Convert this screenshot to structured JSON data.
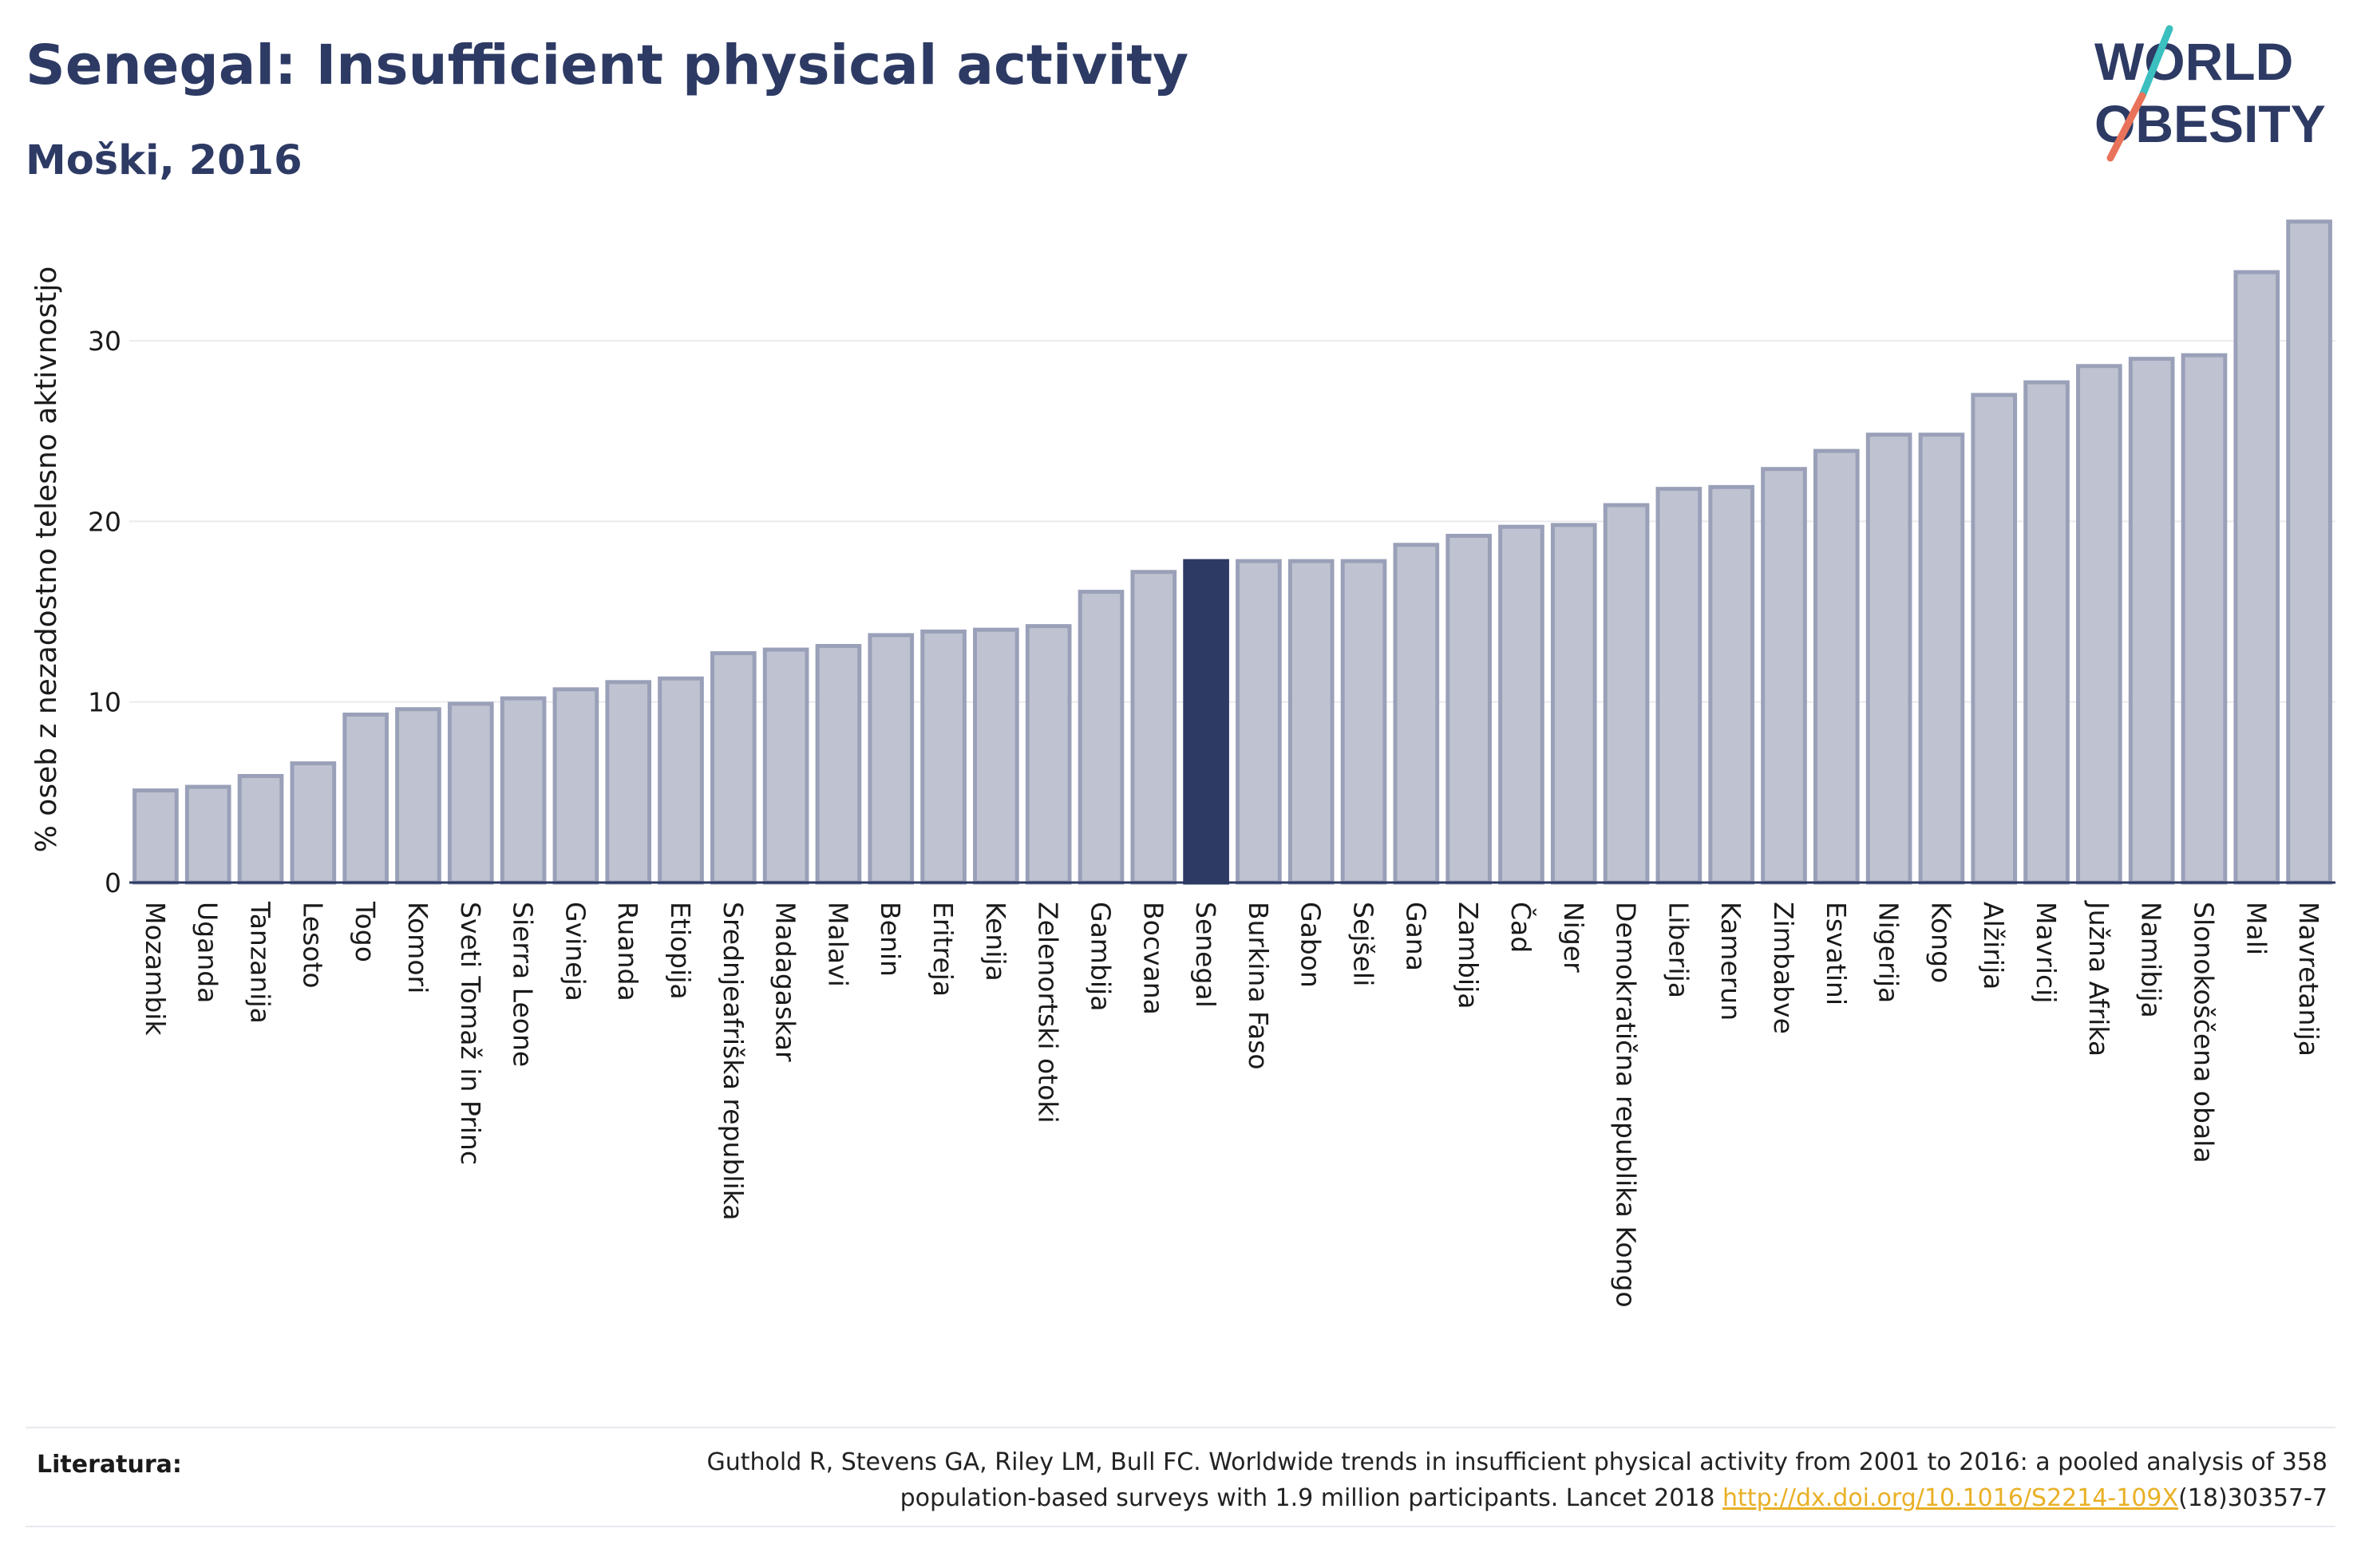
{
  "header": {
    "title": "Senegal: Insufficient physical activity",
    "subtitle": "Moški, 2016"
  },
  "logo": {
    "text_top": "WORLD",
    "text_bottom": "OBESITY",
    "colors": {
      "text": "#2d3a64",
      "slash_top": "#3bbfbf",
      "slash_bottom": "#e8735a"
    }
  },
  "chart_data": {
    "type": "bar",
    "title": "",
    "xlabel": "",
    "ylabel": "% oseb z nezadostno telesno aktivnostjo",
    "ylim": [
      0,
      38
    ],
    "yticks": [
      0,
      10,
      20,
      30
    ],
    "grid": true,
    "highlight": "Senegal",
    "colors": {
      "bar_fill": "#bfc3d1",
      "bar_stroke": "#9aa0b8",
      "highlight": "#2d3a64",
      "grid": "#ebebef",
      "axis": "#2d3a64",
      "text": "#1a1a1a"
    },
    "categories": [
      "Mozambik",
      "Uganda",
      "Tanzanija",
      "Lesoto",
      "Togo",
      "Komori",
      "Sveti Tomaž in Princ",
      "Sierra Leone",
      "Gvineja",
      "Ruanda",
      "Etiopija",
      "Srednjeafriška republika",
      "Madagaskar",
      "Malavi",
      "Benin",
      "Eritreja",
      "Kenija",
      "Zelenortski otoki",
      "Gambija",
      "Bocvana",
      "Senegal",
      "Burkina Faso",
      "Gabon",
      "Sejšeli",
      "Gana",
      "Zambija",
      "Čad",
      "Niger",
      "Demokratična republika Kongo",
      "Liberija",
      "Kamerun",
      "Zimbabve",
      "Esvatini",
      "Nigerija",
      "Kongo",
      "Alžirija",
      "Mavricij",
      "Južna Afrika",
      "Namibija",
      "Slonokoščena obala",
      "Mali",
      "Mavretanija"
    ],
    "values": [
      5.1,
      5.3,
      5.9,
      6.6,
      9.3,
      9.6,
      9.9,
      10.2,
      10.7,
      11.1,
      11.3,
      12.7,
      12.9,
      13.1,
      13.7,
      13.9,
      14.0,
      14.2,
      16.1,
      17.2,
      17.8,
      17.8,
      17.8,
      17.8,
      18.7,
      19.2,
      19.7,
      19.8,
      20.9,
      21.8,
      21.9,
      22.9,
      23.9,
      24.8,
      24.8,
      27.0,
      27.7,
      28.6,
      29.0,
      29.2,
      33.8,
      36.6
    ]
  },
  "footer": {
    "label": "Literatura:",
    "citation_line1": "Guthold R, Stevens GA, Riley LM, Bull FC. Worldwide trends in insufficient physical activity from 2001 to 2016: a pooled analysis of 358",
    "citation_line2_pre": "population-based surveys with 1.9 million participants. Lancet 2018 ",
    "link": "http://dx.doi.org/10.1016/S2214-109X",
    "citation_line2_post": "(18)30357-7"
  }
}
